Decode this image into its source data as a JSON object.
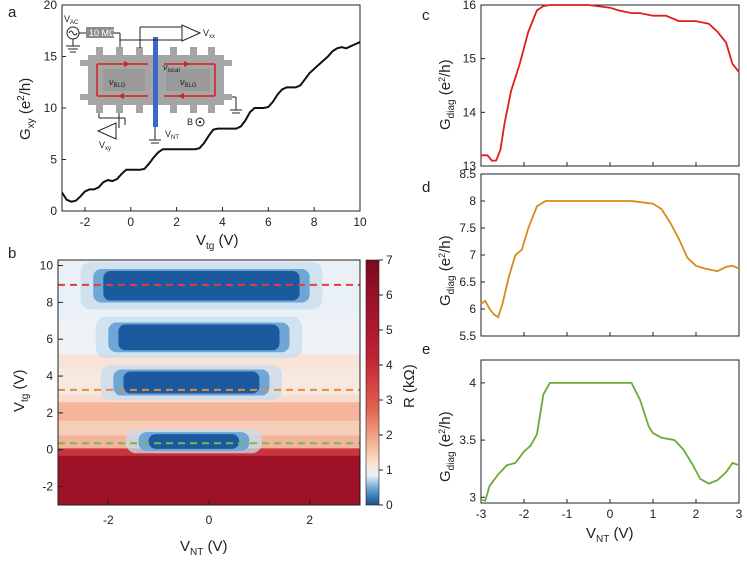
{
  "panels": {
    "a": "a",
    "b": "b",
    "c": "c",
    "d": "d",
    "e": "e"
  },
  "colors": {
    "c": "#e11d1d",
    "d": "#d98a1c",
    "e": "#6aab35",
    "gxy": "#111111",
    "dash_red": "#e83c3c",
    "dash_orange": "#e88a3c",
    "dash_green": "#7bb84a"
  },
  "inset": {
    "vac": "V",
    "vac_sub": "AC",
    "resistor": "10 MΩ",
    "vxx": "V",
    "vxx_sub": "xx",
    "vxy": "V",
    "vxy_sub": "xy",
    "vnt": "V",
    "vnt_sub": "NT",
    "nu_left": "ν",
    "nu_left_sub": "BLG",
    "nu_right": "ν",
    "nu_right_sub": "BLG",
    "nu_local": "ν",
    "nu_local_sub": "local",
    "bfield": "B"
  },
  "chart_data": [
    {
      "id": "a",
      "type": "line",
      "title": "",
      "xlabel": "V",
      "xlabel_sub": "tg",
      "xlabel_unit": " (V)",
      "ylabel": "G",
      "ylabel_sub": "xy",
      "ylabel_unit": " (e",
      "xlim": [
        -3,
        10
      ],
      "ylim": [
        0,
        20
      ],
      "xticks": [
        -2,
        0,
        2,
        4,
        6,
        8,
        10
      ],
      "yticks": [
        0,
        5,
        10,
        15,
        20
      ],
      "x": [
        -3,
        -2.8,
        -2.6,
        -2.4,
        -2.2,
        -2,
        -1.8,
        -1.6,
        -1.4,
        -1.2,
        -1,
        -0.8,
        -0.6,
        -0.4,
        -0.2,
        0,
        0.2,
        0.4,
        0.6,
        0.8,
        1,
        1.2,
        1.4,
        1.6,
        1.8,
        2,
        2.2,
        2.4,
        2.6,
        2.8,
        3,
        3.2,
        3.4,
        3.6,
        3.8,
        4,
        4.2,
        4.4,
        4.6,
        4.8,
        5,
        5.2,
        5.4,
        5.6,
        5.8,
        6,
        6.2,
        6.4,
        6.6,
        6.8,
        7,
        7.2,
        7.4,
        7.6,
        7.8,
        8,
        8.2,
        8.4,
        8.6,
        8.8,
        9,
        9.2,
        9.4,
        9.6,
        9.8,
        10
      ],
      "y": [
        1.8,
        1.1,
        0.9,
        1.0,
        1.4,
        1.9,
        2.1,
        2.1,
        2.3,
        2.8,
        3.0,
        2.9,
        3.1,
        3.6,
        4.0,
        4.0,
        4.0,
        4.0,
        4.1,
        4.6,
        5.2,
        5.7,
        6.0,
        6.0,
        6.0,
        6.0,
        6.0,
        6.0,
        6.0,
        6.0,
        6.1,
        6.6,
        7.3,
        7.9,
        8.0,
        8.0,
        8.0,
        8.0,
        8.0,
        8.2,
        8.8,
        9.6,
        10.0,
        10.0,
        10.0,
        10.1,
        10.6,
        11.3,
        11.8,
        12.0,
        12.0,
        12.0,
        12.2,
        12.8,
        13.4,
        13.8,
        14.2,
        14.6,
        15.0,
        15.5,
        15.8,
        15.9,
        15.8,
        16.0,
        16.2,
        16.4
      ]
    },
    {
      "id": "b",
      "type": "heatmap",
      "xlabel": "V",
      "xlabel_sub": "NT",
      "xlabel_unit": " (V)",
      "ylabel": "V",
      "ylabel_sub": "tg",
      "ylabel_unit": " (V)",
      "xlim": [
        -3,
        3
      ],
      "ylim": [
        -3,
        10.3
      ],
      "xticks": [
        -2,
        0,
        2
      ],
      "yticks": [
        -2,
        0,
        2,
        4,
        6,
        8,
        10
      ],
      "colorbar": {
        "label": "R (kΩ)",
        "range": [
          0,
          7
        ],
        "ticks": [
          0,
          1,
          2,
          3,
          4,
          5,
          6,
          7
        ]
      },
      "plateaus": [
        {
          "vtg_center": 0.45,
          "vtg_half_width": 0.4,
          "vnt_from": -1.2,
          "vnt_to": 0.6
        },
        {
          "vtg_center": 3.65,
          "vtg_half_width": 0.6,
          "vnt_from": -1.7,
          "vnt_to": 1.0
        },
        {
          "vtg_center": 6.1,
          "vtg_half_width": 0.7,
          "vnt_from": -1.8,
          "vnt_to": 1.4
        },
        {
          "vtg_center": 8.9,
          "vtg_half_width": 0.8,
          "vnt_from": -2.1,
          "vnt_to": 1.8
        }
      ],
      "dashed_lines": [
        {
          "vtg": 8.95,
          "color": "red"
        },
        {
          "vtg": 3.25,
          "color": "orange"
        },
        {
          "vtg": 0.35,
          "color": "green"
        }
      ]
    },
    {
      "id": "c",
      "type": "line",
      "xlabel": "",
      "ylabel": "G",
      "ylabel_sub": "diag",
      "ylabel_unit": " (e",
      "xlim": [
        -3,
        3
      ],
      "ylim": [
        13,
        16
      ],
      "yticks": [
        13,
        14,
        15,
        16
      ],
      "x": [
        -3,
        -2.85,
        -2.75,
        -2.65,
        -2.55,
        -2.45,
        -2.3,
        -2.1,
        -1.9,
        -1.7,
        -1.55,
        -1.4,
        -1.2,
        -1.0,
        -0.5,
        0,
        0.2,
        0.5,
        0.7,
        1.0,
        1.3,
        1.6,
        1.8,
        2.0,
        2.3,
        2.5,
        2.7,
        2.85,
        3
      ],
      "y": [
        13.2,
        13.2,
        13.1,
        13.1,
        13.3,
        13.8,
        14.4,
        14.9,
        15.5,
        15.9,
        15.98,
        16.0,
        16.0,
        16.0,
        16.0,
        15.95,
        15.9,
        15.85,
        15.85,
        15.8,
        15.8,
        15.7,
        15.7,
        15.7,
        15.65,
        15.5,
        15.3,
        14.9,
        14.75
      ]
    },
    {
      "id": "d",
      "type": "line",
      "xlabel": "",
      "ylabel": "G",
      "ylabel_sub": "diag",
      "ylabel_unit": " (e",
      "xlim": [
        -3,
        3
      ],
      "ylim": [
        5.5,
        8.5
      ],
      "yticks": [
        5.5,
        6,
        6.5,
        7,
        7.5,
        8,
        8.5
      ],
      "x": [
        -3,
        -2.9,
        -2.8,
        -2.7,
        -2.6,
        -2.5,
        -2.35,
        -2.2,
        -2.05,
        -1.9,
        -1.7,
        -1.5,
        -1.2,
        -0.8,
        0,
        0.5,
        1.0,
        1.2,
        1.4,
        1.6,
        1.8,
        2.0,
        2.2,
        2.5,
        2.7,
        2.85,
        3
      ],
      "y": [
        6.1,
        6.15,
        6.0,
        5.9,
        5.85,
        6.1,
        6.6,
        7.0,
        7.1,
        7.5,
        7.9,
        8.0,
        8.0,
        8.0,
        8.0,
        8.0,
        7.95,
        7.85,
        7.6,
        7.3,
        6.95,
        6.8,
        6.75,
        6.7,
        6.78,
        6.8,
        6.75
      ]
    },
    {
      "id": "e",
      "type": "line",
      "xlabel": "V",
      "xlabel_sub": "NT",
      "xlabel_unit": " (V)",
      "ylabel": "G",
      "ylabel_sub": "diag",
      "ylabel_unit": " (e",
      "xlim": [
        -3,
        3
      ],
      "ylim": [
        2.95,
        4.2
      ],
      "xticks": [
        -3,
        -2,
        -1,
        0,
        1,
        2,
        3
      ],
      "yticks": [
        3,
        3.5,
        4
      ],
      "x": [
        -3,
        -2.9,
        -2.8,
        -2.6,
        -2.4,
        -2.2,
        -2.0,
        -1.85,
        -1.7,
        -1.55,
        -1.4,
        -1.2,
        -1.0,
        -0.5,
        0,
        0.5,
        0.7,
        0.9,
        1.0,
        1.2,
        1.5,
        1.7,
        1.9,
        2.1,
        2.3,
        2.5,
        2.7,
        2.85,
        3
      ],
      "y": [
        2.98,
        2.97,
        3.1,
        3.2,
        3.28,
        3.3,
        3.4,
        3.45,
        3.55,
        3.9,
        4.0,
        4.0,
        4.0,
        4.0,
        4.0,
        4.0,
        3.85,
        3.62,
        3.56,
        3.52,
        3.5,
        3.42,
        3.3,
        3.16,
        3.12,
        3.15,
        3.22,
        3.3,
        3.28
      ]
    }
  ]
}
